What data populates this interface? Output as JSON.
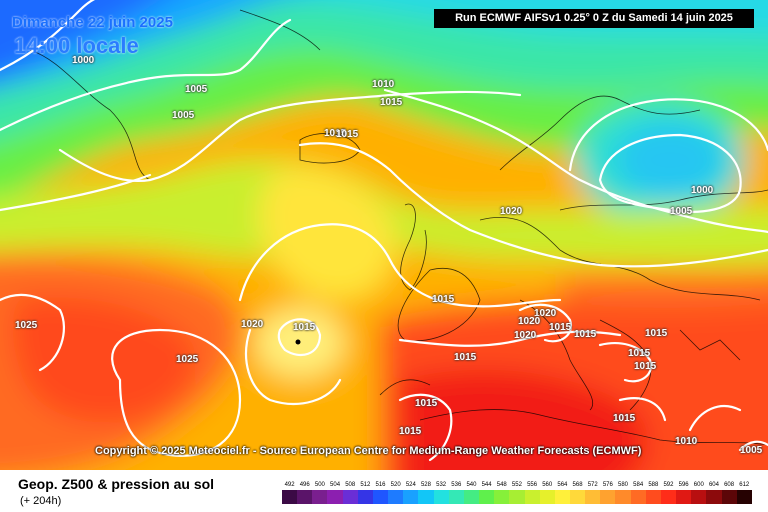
{
  "header": {
    "date": "Dimanche 22 juin 2025",
    "hour": "14:00 locale",
    "run": "Run ECMWF AIFSv1 0.25° 0 Z du Samedi 14 juin 2025"
  },
  "copyright": "Copyright © 2025 Meteociel.fr - Source European Centre for Medium-Range Weather Forecasts (ECMWF)",
  "footer": {
    "title": "Geop. Z500 & pression au sol",
    "subtitle": "(+ 204h)"
  },
  "isobar_labels": [
    "1000",
    "1005",
    "1005",
    "1010",
    "1015",
    "1015",
    "1015",
    "1020",
    "1025",
    "1020",
    "1015",
    "1025",
    "1015",
    "1015",
    "1020",
    "1020",
    "1020",
    "1015",
    "1015",
    "1015",
    "1015",
    "1015",
    "1015",
    "1015",
    "1015",
    "1000",
    "1005",
    "1010",
    "1005"
  ],
  "scale": {
    "labels": [
      "492",
      "496",
      "500",
      "504",
      "508",
      "512",
      "516",
      "520",
      "524",
      "528",
      "532",
      "536",
      "540",
      "544",
      "548",
      "552",
      "556",
      "560",
      "564",
      "568",
      "572",
      "576",
      "580",
      "584",
      "588",
      "592",
      "596",
      "600",
      "604",
      "608",
      "612"
    ],
    "colors": [
      "#3b0a45",
      "#5a1469",
      "#7a1f8f",
      "#8c1fb0",
      "#6a2ed6",
      "#3535e6",
      "#1f56ff",
      "#1e7bff",
      "#19a1ff",
      "#12c6f7",
      "#22e1e0",
      "#34e8b6",
      "#44ec83",
      "#5ff04c",
      "#86f03a",
      "#a7ee33",
      "#c9f02e",
      "#e6f02b",
      "#fff03a",
      "#ffd93a",
      "#ffbd35",
      "#ffa22f",
      "#ff8a2a",
      "#ff6b24",
      "#ff4c1e",
      "#ff2d19",
      "#e01914",
      "#b80f10",
      "#8c0a0c",
      "#5c0608",
      "#260202"
    ]
  }
}
